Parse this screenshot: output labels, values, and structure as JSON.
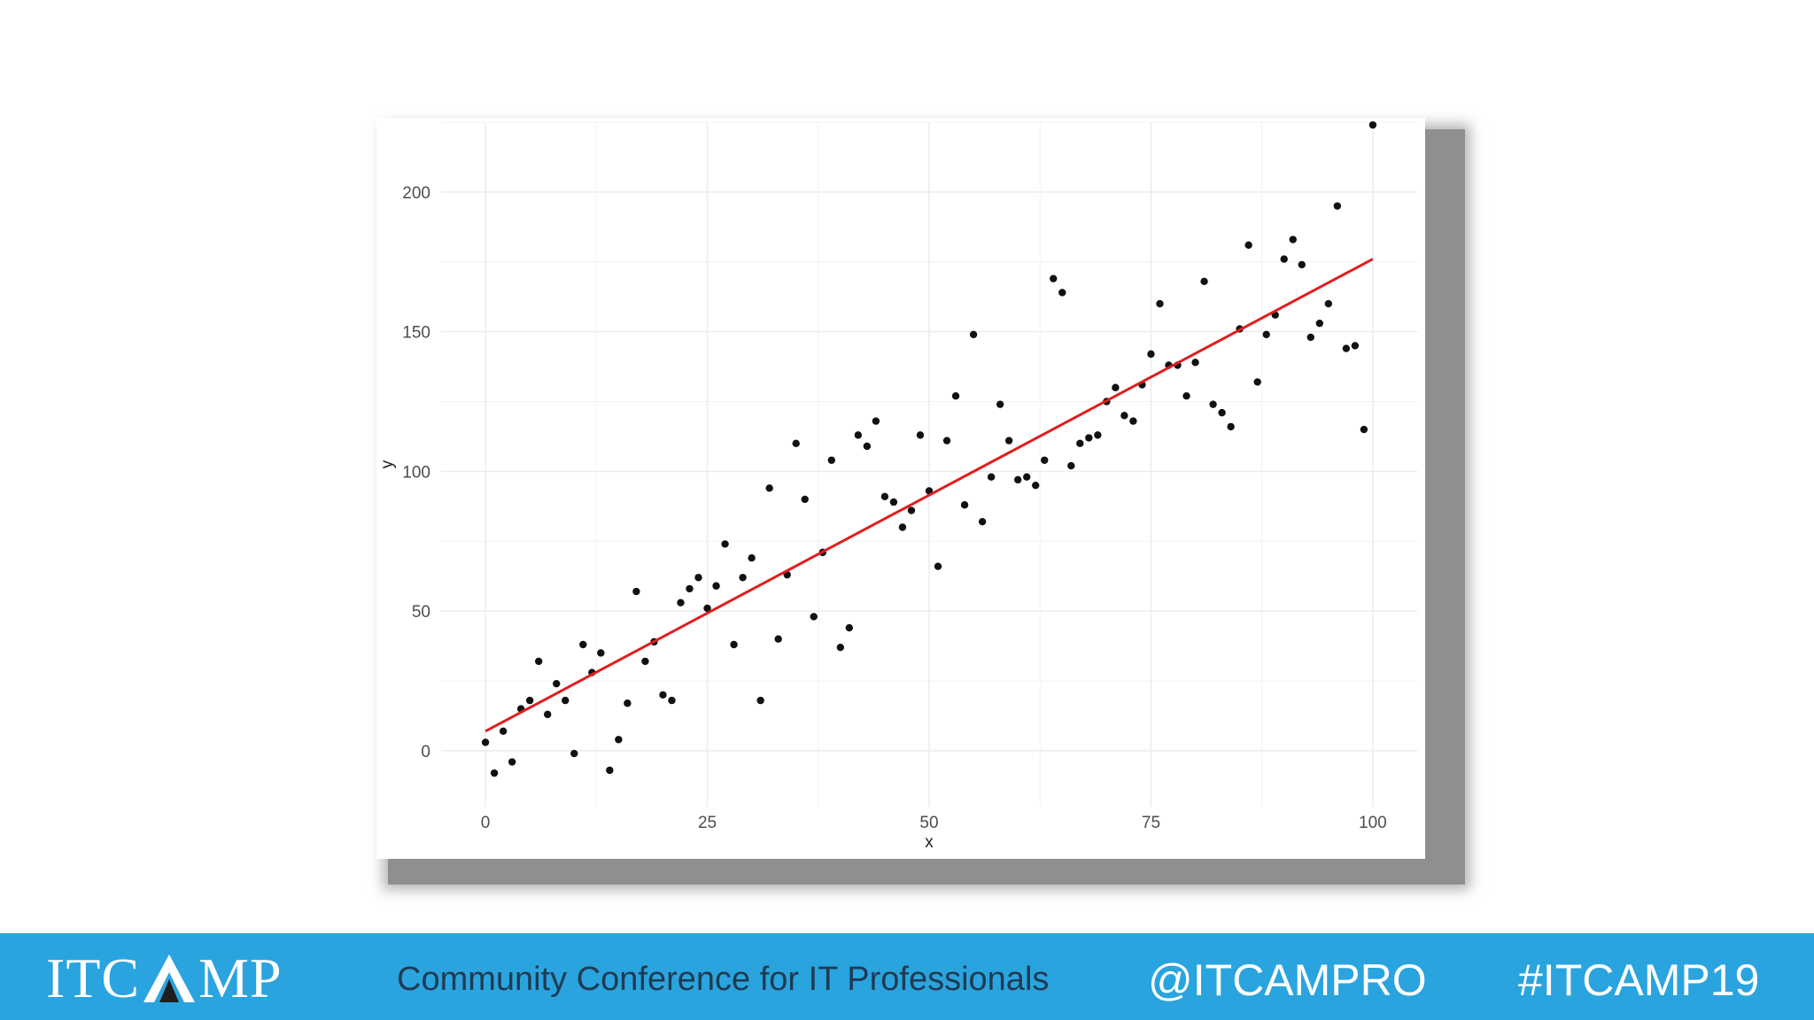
{
  "chart_data": {
    "type": "scatter",
    "title": "",
    "xlabel": "x",
    "ylabel": "y",
    "xlim": [
      -5,
      105
    ],
    "ylim": [
      -20,
      225
    ],
    "xticks": [
      0,
      25,
      50,
      75,
      100
    ],
    "yticks": [
      0,
      50,
      100,
      150,
      200
    ],
    "grid": true,
    "points": {
      "x": [
        0,
        1,
        2,
        3,
        4,
        5,
        6,
        7,
        8,
        9,
        10,
        11,
        12,
        13,
        14,
        15,
        16,
        17,
        18,
        19,
        20,
        21,
        22,
        23,
        24,
        25,
        26,
        27,
        28,
        29,
        30,
        31,
        32,
        33,
        34,
        35,
        36,
        37,
        38,
        39,
        40,
        41,
        42,
        43,
        44,
        45,
        46,
        47,
        48,
        49,
        50,
        51,
        52,
        53,
        54,
        55,
        56,
        57,
        58,
        59,
        60,
        61,
        62,
        63,
        64,
        65,
        66,
        67,
        68,
        69,
        70,
        71,
        72,
        73,
        74,
        75,
        76,
        77,
        78,
        79,
        80,
        81,
        82,
        83,
        84,
        85,
        86,
        87,
        88,
        89,
        90,
        91,
        92,
        93,
        94,
        95,
        96,
        97,
        98,
        99,
        100
      ],
      "y": [
        3,
        -8,
        7,
        -4,
        15,
        18,
        32,
        13,
        24,
        18,
        -1,
        38,
        28,
        35,
        -7,
        4,
        17,
        57,
        32,
        39,
        20,
        18,
        53,
        58,
        62,
        51,
        59,
        74,
        38,
        62,
        69,
        18,
        94,
        40,
        63,
        110,
        90,
        48,
        71,
        104,
        37,
        44,
        113,
        109,
        118,
        91,
        89,
        80,
        86,
        113,
        93,
        66,
        111,
        127,
        88,
        149,
        82,
        98,
        124,
        111,
        97,
        98,
        95,
        104,
        169,
        164,
        102,
        110,
        112,
        113,
        125,
        130,
        120,
        118,
        131,
        142,
        160,
        138,
        138,
        127,
        139,
        168,
        124,
        121,
        116,
        151,
        181,
        132,
        149,
        156,
        176,
        183,
        174,
        148,
        153,
        160,
        195,
        144,
        145,
        115,
        224
      ]
    },
    "fit_line": {
      "x": [
        0,
        100
      ],
      "y": [
        7,
        176
      ],
      "color": "#e01e1e"
    },
    "point_color": "#111111",
    "grid_color": "#ebebf2"
  },
  "footer": {
    "logo_left": "ITC",
    "logo_right": "MP",
    "tagline": "Community Conference for IT Professionals",
    "handle": "@ITCAMPRO",
    "hashtag": "#ITCAMP19"
  },
  "colors": {
    "footer_bg": "#2aa4df",
    "tagline": "#1e3b52"
  }
}
